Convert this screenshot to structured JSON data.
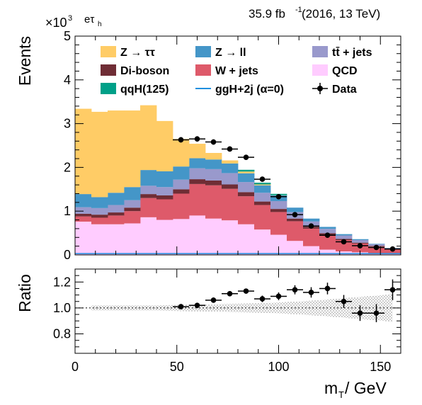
{
  "header": {
    "exponent_base": "×10",
    "exponent_power": "3",
    "channel_main": "eτ",
    "channel_sub": "h",
    "lumi_value": "35.9 fb",
    "lumi_power": "-1",
    "lumi_rest": " (2016, 13 TeV)"
  },
  "legend": {
    "ztt": "Z → ττ",
    "zll": "Z → ll",
    "ttbar": "tt̄ + jets",
    "diboson": "Di-boson",
    "wjets": "W + jets",
    "qcd": "QCD",
    "qqh": "qqH(125)",
    "ggh": "ggH+2j (α=0)",
    "data": "Data"
  },
  "colors": {
    "qcd": "#ffccff",
    "wjets": "#de5a6a",
    "diboson": "#6f2d35",
    "ttbar": "#9999cc",
    "zll": "#4496c8",
    "ztt": "#ffcc66",
    "qqh": "#00a088",
    "ggh": "#1f8fdf",
    "band": "#b0b0b0"
  },
  "chart_data": [
    {
      "type": "bar",
      "stacked": true,
      "ylabel": "Events",
      "ylim": [
        0,
        5000
      ],
      "y_ticks": [
        0,
        1000,
        2000,
        3000,
        4000,
        5000
      ],
      "y_tick_labels": [
        "0",
        "1",
        "2",
        "3",
        "4",
        "5"
      ],
      "xlim": [
        0,
        160
      ],
      "bin_edges": [
        0,
        8,
        16,
        24,
        32,
        40,
        48,
        56,
        64,
        72,
        80,
        88,
        96,
        104,
        112,
        120,
        128,
        136,
        144,
        152,
        160
      ],
      "series": [
        {
          "key": "qcd",
          "name": "QCD",
          "values": [
            760,
            700,
            700,
            720,
            860,
            800,
            820,
            900,
            830,
            790,
            700,
            580,
            460,
            320,
            200,
            120,
            80,
            60,
            40,
            25
          ]
        },
        {
          "key": "wjets",
          "name": "W + jets",
          "values": [
            120,
            150,
            200,
            280,
            440,
            470,
            580,
            720,
            760,
            720,
            640,
            560,
            520,
            450,
            400,
            340,
            260,
            200,
            150,
            95
          ]
        },
        {
          "key": "diboson",
          "name": "Di-boson",
          "values": [
            60,
            70,
            70,
            80,
            90,
            90,
            100,
            110,
            110,
            100,
            95,
            80,
            70,
            60,
            45,
            35,
            25,
            20,
            15,
            10
          ]
        },
        {
          "key": "ttbar",
          "name": "tt̄ + jets",
          "values": [
            150,
            150,
            170,
            170,
            190,
            190,
            220,
            250,
            260,
            260,
            230,
            200,
            180,
            150,
            120,
            100,
            80,
            60,
            40,
            25
          ]
        },
        {
          "key": "zll",
          "name": "Z → ll",
          "values": [
            300,
            250,
            280,
            300,
            360,
            360,
            300,
            230,
            220,
            220,
            200,
            170,
            130,
            100,
            65,
            45,
            30,
            20,
            10,
            5
          ]
        },
        {
          "key": "ztt",
          "name": "Z → ττ",
          "values": [
            1950,
            1950,
            1880,
            1750,
            1480,
            1150,
            630,
            330,
            150,
            70,
            40,
            20,
            5,
            0,
            0,
            0,
            0,
            0,
            0,
            0
          ]
        },
        {
          "key": "qqh",
          "name": "qqH(125)",
          "values": [
            0,
            0,
            0,
            0,
            0,
            0,
            0,
            0,
            0,
            0,
            40,
            40,
            30,
            0,
            0,
            0,
            0,
            0,
            0,
            0
          ]
        }
      ],
      "ggh_line": {
        "name": "ggH+2j (α=0)",
        "y": 30
      },
      "data": {
        "name": "Data",
        "x": [
          52,
          60,
          68,
          76,
          84,
          92,
          100,
          108,
          116,
          124,
          132,
          140,
          148,
          156
        ],
        "y": [
          2630,
          2650,
          2580,
          2420,
          2230,
          1730,
          1330,
          920,
          660,
          450,
          300,
          210,
          170,
          135
        ]
      }
    },
    {
      "type": "scatter",
      "xlabel_main": "m",
      "xlabel_sub": "T",
      "xlabel_unit": " / GeV",
      "ylabel": "Ratio",
      "xlim": [
        0,
        160
      ],
      "ylim": [
        0.65,
        1.3
      ],
      "x_ticks": [
        0,
        50,
        100,
        150
      ],
      "x_tick_labels": [
        "0",
        "50",
        "100",
        "150"
      ],
      "y_ticks": [
        0.8,
        1.0,
        1.2
      ],
      "y_tick_labels": [
        "0.8",
        "1.0",
        "1.2"
      ],
      "band": {
        "x": [
          8,
          24,
          40,
          56,
          72,
          88,
          104,
          120,
          136,
          152,
          156
        ],
        "half_width": [
          0.02,
          0.02,
          0.02,
          0.025,
          0.03,
          0.035,
          0.045,
          0.06,
          0.08,
          0.1,
          0.11
        ]
      },
      "points": {
        "x": [
          52,
          60,
          68,
          76,
          84,
          92,
          100,
          108,
          116,
          124,
          132,
          140,
          148,
          156
        ],
        "y": [
          1.01,
          1.02,
          1.06,
          1.11,
          1.13,
          1.07,
          1.09,
          1.14,
          1.12,
          1.15,
          1.05,
          0.96,
          0.96,
          1.14
        ],
        "err": [
          0.02,
          0.02,
          0.02,
          0.02,
          0.02,
          0.025,
          0.03,
          0.035,
          0.04,
          0.045,
          0.05,
          0.06,
          0.07,
          0.08
        ]
      }
    }
  ]
}
